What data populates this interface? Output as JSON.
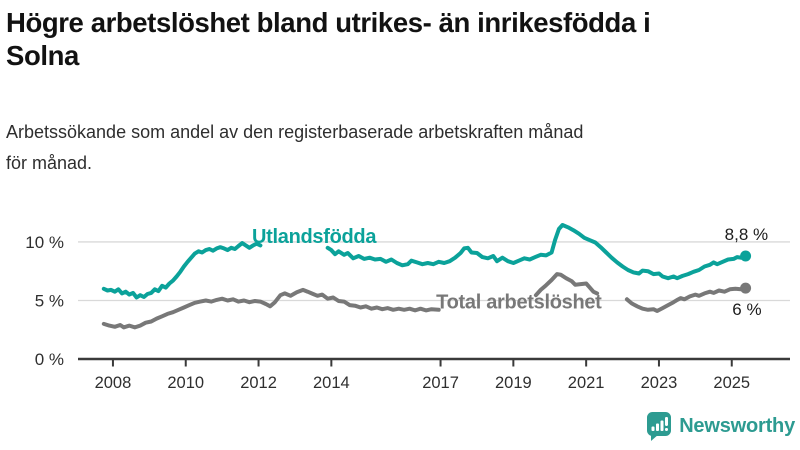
{
  "header": {
    "title_line1": "Högre arbetslöshet bland utrikes- än inrikesfödda i",
    "title_line2": "Solna",
    "subtitle_line1": "Arbetssökande som andel av den registerbaserade arbetskraften månad",
    "subtitle_line2": "för månad."
  },
  "branding": {
    "name": "Newsworthy",
    "badge_color": "#2d9b91",
    "text_color": "#2d9b91"
  },
  "colors": {
    "background": "#ffffff",
    "axis": "#3a3a3a",
    "gridline": "#d9d9d9",
    "tick_label": "#2f2f2f",
    "end_label": "#1c1c1c",
    "series_foreign": "#0ba29a",
    "series_total": "#787878"
  },
  "chart_data": {
    "type": "line",
    "title": "Högre arbetslöshet bland utrikes- än inrikesfödda i Solna",
    "subtitle": "Arbetssökande som andel av den registerbaserade arbetskraften månad för månad.",
    "ylabel_format": "percent",
    "xlim": [
      2007.04,
      2026.6
    ],
    "ylim": [
      0,
      12.3
    ],
    "grid": "horizontal",
    "legend_position": "inline-labels",
    "yticks": [
      {
        "value": 0,
        "label": "0 %"
      },
      {
        "value": 5,
        "label": "5 %"
      },
      {
        "value": 10,
        "label": "10 %"
      }
    ],
    "xticks": [
      {
        "value": 2008,
        "label": "2008"
      },
      {
        "value": 2010,
        "label": "2010"
      },
      {
        "value": 2012,
        "label": "2012"
      },
      {
        "value": 2014,
        "label": "2014"
      },
      {
        "value": 2017,
        "label": "2017"
      },
      {
        "value": 2019,
        "label": "2019"
      },
      {
        "value": 2021,
        "label": "2021"
      },
      {
        "value": 2023,
        "label": "2023"
      },
      {
        "value": 2025,
        "label": "2025"
      }
    ],
    "series": [
      {
        "name": "Utlandsfödda",
        "color": "#0ba29a",
        "inline_label": {
          "text": "Utlandsfödda",
          "x": 2011.82,
          "y": 10.5
        },
        "end_label": {
          "text": "8,8 %",
          "x": 2026.0,
          "y": 10.68
        },
        "end_dot": {
          "x": 2025.38,
          "y": 8.8
        },
        "end_value": 8.8,
        "segments": [
          [
            [
              2007.75,
              6.0
            ],
            [
              2007.85,
              5.85
            ],
            [
              2007.95,
              5.9
            ],
            [
              2008.05,
              5.75
            ],
            [
              2008.15,
              5.95
            ],
            [
              2008.25,
              5.6
            ],
            [
              2008.35,
              5.75
            ],
            [
              2008.45,
              5.5
            ],
            [
              2008.55,
              5.65
            ],
            [
              2008.65,
              5.25
            ],
            [
              2008.75,
              5.45
            ],
            [
              2008.85,
              5.3
            ],
            [
              2008.95,
              5.55
            ],
            [
              2009.05,
              5.65
            ],
            [
              2009.15,
              5.95
            ],
            [
              2009.25,
              5.8
            ],
            [
              2009.35,
              6.25
            ],
            [
              2009.45,
              6.1
            ],
            [
              2009.55,
              6.45
            ],
            [
              2009.65,
              6.7
            ],
            [
              2009.75,
              7.05
            ],
            [
              2009.85,
              7.45
            ],
            [
              2009.95,
              7.9
            ],
            [
              2010.05,
              8.3
            ],
            [
              2010.15,
              8.65
            ],
            [
              2010.25,
              9.0
            ],
            [
              2010.35,
              9.2
            ],
            [
              2010.45,
              9.1
            ],
            [
              2010.55,
              9.3
            ],
            [
              2010.65,
              9.4
            ],
            [
              2010.75,
              9.25
            ],
            [
              2010.85,
              9.45
            ],
            [
              2010.95,
              9.55
            ],
            [
              2011.05,
              9.45
            ],
            [
              2011.15,
              9.3
            ],
            [
              2011.25,
              9.5
            ],
            [
              2011.35,
              9.4
            ],
            [
              2011.45,
              9.65
            ],
            [
              2011.55,
              9.9
            ],
            [
              2011.65,
              9.7
            ],
            [
              2011.75,
              9.5
            ],
            [
              2011.85,
              9.7
            ],
            [
              2011.95,
              9.85
            ],
            [
              2012.05,
              9.7
            ]
          ],
          [
            [
              2013.9,
              9.5
            ],
            [
              2014.0,
              9.3
            ],
            [
              2014.1,
              8.95
            ],
            [
              2014.2,
              9.2
            ],
            [
              2014.35,
              8.9
            ],
            [
              2014.45,
              9.05
            ],
            [
              2014.6,
              8.6
            ],
            [
              2014.75,
              8.8
            ],
            [
              2014.9,
              8.55
            ],
            [
              2015.05,
              8.65
            ],
            [
              2015.2,
              8.5
            ],
            [
              2015.35,
              8.55
            ],
            [
              2015.5,
              8.3
            ],
            [
              2015.65,
              8.5
            ],
            [
              2015.8,
              8.2
            ],
            [
              2015.95,
              8.0
            ],
            [
              2016.1,
              8.1
            ],
            [
              2016.2,
              8.4
            ],
            [
              2016.35,
              8.25
            ],
            [
              2016.5,
              8.1
            ],
            [
              2016.65,
              8.2
            ],
            [
              2016.8,
              8.1
            ],
            [
              2016.95,
              8.3
            ],
            [
              2017.1,
              8.2
            ],
            [
              2017.25,
              8.35
            ],
            [
              2017.4,
              8.65
            ],
            [
              2017.55,
              9.05
            ],
            [
              2017.65,
              9.45
            ],
            [
              2017.75,
              9.5
            ],
            [
              2017.85,
              9.1
            ],
            [
              2018.0,
              9.05
            ],
            [
              2018.15,
              8.7
            ],
            [
              2018.3,
              8.6
            ],
            [
              2018.45,
              8.8
            ],
            [
              2018.55,
              8.35
            ],
            [
              2018.7,
              8.65
            ],
            [
              2018.85,
              8.35
            ],
            [
              2019.0,
              8.2
            ],
            [
              2019.15,
              8.4
            ],
            [
              2019.3,
              8.6
            ],
            [
              2019.45,
              8.5
            ],
            [
              2019.6,
              8.7
            ],
            [
              2019.75,
              8.9
            ],
            [
              2019.9,
              8.85
            ],
            [
              2020.05,
              9.1
            ],
            [
              2020.15,
              10.2
            ],
            [
              2020.25,
              11.1
            ],
            [
              2020.35,
              11.45
            ],
            [
              2020.5,
              11.25
            ],
            [
              2020.65,
              11.0
            ],
            [
              2020.8,
              10.7
            ],
            [
              2020.95,
              10.35
            ],
            [
              2021.1,
              10.15
            ],
            [
              2021.25,
              9.95
            ],
            [
              2021.4,
              9.55
            ],
            [
              2021.55,
              9.1
            ],
            [
              2021.7,
              8.65
            ],
            [
              2021.85,
              8.25
            ],
            [
              2022.0,
              7.9
            ],
            [
              2022.15,
              7.6
            ],
            [
              2022.3,
              7.4
            ],
            [
              2022.45,
              7.3
            ],
            [
              2022.55,
              7.55
            ],
            [
              2022.7,
              7.5
            ],
            [
              2022.85,
              7.25
            ],
            [
              2023.0,
              7.3
            ],
            [
              2023.1,
              7.05
            ],
            [
              2023.25,
              6.9
            ],
            [
              2023.4,
              7.05
            ],
            [
              2023.5,
              6.9
            ],
            [
              2023.65,
              7.1
            ],
            [
              2023.8,
              7.25
            ],
            [
              2023.95,
              7.45
            ],
            [
              2024.1,
              7.6
            ],
            [
              2024.25,
              7.9
            ],
            [
              2024.4,
              8.05
            ],
            [
              2024.5,
              8.25
            ],
            [
              2024.6,
              8.1
            ],
            [
              2024.75,
              8.3
            ],
            [
              2024.9,
              8.5
            ],
            [
              2025.05,
              8.55
            ],
            [
              2025.15,
              8.7
            ],
            [
              2025.25,
              8.65
            ],
            [
              2025.38,
              8.8
            ]
          ]
        ]
      },
      {
        "name": "Total arbetslöshet",
        "color": "#787878",
        "inline_label": {
          "text": "Total arbetslöshet",
          "x": 2016.88,
          "y": 4.9
        },
        "end_label": {
          "text": "6 %",
          "x": 2025.82,
          "y": 4.28
        },
        "end_dot": {
          "x": 2025.38,
          "y": 6.05
        },
        "end_value": 6.0,
        "segments": [
          [
            [
              2007.75,
              3.0
            ],
            [
              2007.9,
              2.85
            ],
            [
              2008.05,
              2.75
            ],
            [
              2008.2,
              2.9
            ],
            [
              2008.3,
              2.7
            ],
            [
              2008.45,
              2.85
            ],
            [
              2008.6,
              2.7
            ],
            [
              2008.75,
              2.85
            ],
            [
              2008.9,
              3.1
            ],
            [
              2009.05,
              3.2
            ],
            [
              2009.2,
              3.45
            ],
            [
              2009.35,
              3.65
            ],
            [
              2009.5,
              3.85
            ],
            [
              2009.65,
              4.0
            ],
            [
              2009.8,
              4.2
            ],
            [
              2009.95,
              4.4
            ],
            [
              2010.1,
              4.6
            ],
            [
              2010.25,
              4.8
            ],
            [
              2010.4,
              4.9
            ],
            [
              2010.55,
              5.0
            ],
            [
              2010.7,
              4.9
            ],
            [
              2010.85,
              5.05
            ],
            [
              2011.0,
              5.15
            ],
            [
              2011.15,
              5.0
            ],
            [
              2011.3,
              5.1
            ],
            [
              2011.45,
              4.9
            ],
            [
              2011.6,
              5.0
            ],
            [
              2011.75,
              4.85
            ],
            [
              2011.9,
              4.95
            ],
            [
              2012.05,
              4.9
            ],
            [
              2012.2,
              4.7
            ],
            [
              2012.32,
              4.5
            ],
            [
              2012.45,
              4.85
            ],
            [
              2012.6,
              5.45
            ],
            [
              2012.72,
              5.6
            ],
            [
              2012.88,
              5.4
            ],
            [
              2013.05,
              5.7
            ],
            [
              2013.22,
              5.9
            ],
            [
              2013.35,
              5.75
            ],
            [
              2013.5,
              5.55
            ],
            [
              2013.62,
              5.4
            ],
            [
              2013.75,
              5.5
            ],
            [
              2013.9,
              5.15
            ],
            [
              2014.05,
              5.25
            ],
            [
              2014.2,
              4.95
            ],
            [
              2014.35,
              4.9
            ],
            [
              2014.5,
              4.6
            ],
            [
              2014.65,
              4.55
            ],
            [
              2014.8,
              4.4
            ],
            [
              2014.95,
              4.5
            ],
            [
              2015.1,
              4.3
            ],
            [
              2015.25,
              4.4
            ],
            [
              2015.4,
              4.25
            ],
            [
              2015.55,
              4.35
            ],
            [
              2015.7,
              4.2
            ],
            [
              2015.85,
              4.3
            ],
            [
              2016.0,
              4.2
            ],
            [
              2016.15,
              4.3
            ],
            [
              2016.3,
              4.15
            ],
            [
              2016.45,
              4.3
            ],
            [
              2016.6,
              4.15
            ],
            [
              2016.75,
              4.25
            ],
            [
              2016.95,
              4.2
            ]
          ],
          [
            [
              2019.62,
              5.45
            ],
            [
              2019.75,
              5.9
            ],
            [
              2019.9,
              6.3
            ],
            [
              2020.05,
              6.75
            ],
            [
              2020.2,
              7.25
            ],
            [
              2020.3,
              7.2
            ],
            [
              2020.45,
              6.9
            ],
            [
              2020.6,
              6.65
            ],
            [
              2020.7,
              6.35
            ],
            [
              2020.85,
              6.4
            ],
            [
              2021.0,
              6.45
            ],
            [
              2021.1,
              6.1
            ],
            [
              2021.2,
              5.75
            ],
            [
              2021.3,
              5.6
            ]
          ],
          [
            [
              2022.12,
              5.1
            ],
            [
              2022.25,
              4.75
            ],
            [
              2022.4,
              4.5
            ],
            [
              2022.55,
              4.3
            ],
            [
              2022.7,
              4.2
            ],
            [
              2022.85,
              4.25
            ],
            [
              2022.95,
              4.1
            ],
            [
              2023.1,
              4.35
            ],
            [
              2023.25,
              4.6
            ],
            [
              2023.4,
              4.85
            ],
            [
              2023.5,
              5.05
            ],
            [
              2023.6,
              5.2
            ],
            [
              2023.7,
              5.1
            ],
            [
              2023.85,
              5.35
            ],
            [
              2024.0,
              5.5
            ],
            [
              2024.1,
              5.4
            ],
            [
              2024.25,
              5.6
            ],
            [
              2024.4,
              5.75
            ],
            [
              2024.5,
              5.65
            ],
            [
              2024.65,
              5.85
            ],
            [
              2024.8,
              5.75
            ],
            [
              2024.95,
              5.95
            ],
            [
              2025.1,
              6.0
            ],
            [
              2025.25,
              5.95
            ],
            [
              2025.38,
              6.05
            ]
          ]
        ]
      }
    ]
  }
}
